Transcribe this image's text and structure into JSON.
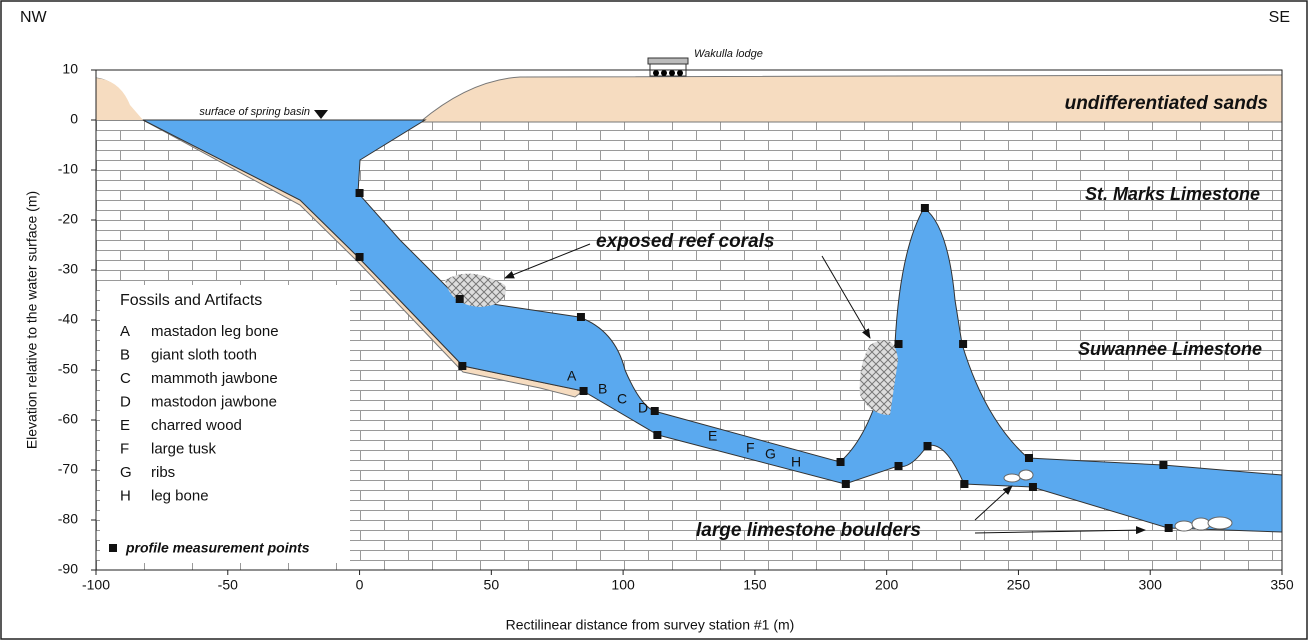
{
  "corner_labels": {
    "left": "NW",
    "right": "SE"
  },
  "y_axis": {
    "label": "Elevation relative to the water surface (m)",
    "lim": [
      -90,
      10
    ],
    "ticks": [
      10,
      0,
      -10,
      -20,
      -30,
      -40,
      -50,
      -60,
      -70,
      -80,
      -90
    ]
  },
  "x_axis": {
    "label": "Rectilinear distance from survey station #1 (m)",
    "lim": [
      -100,
      350
    ],
    "ticks": [
      -100,
      -50,
      0,
      50,
      100,
      150,
      200,
      250,
      300,
      350
    ]
  },
  "annotations": {
    "lodge": "Wakulla lodge",
    "spring_surface": "surface of spring basin",
    "sands": "undifferentiated sands",
    "st_marks": "St. Marks Limestone",
    "suwannee": "Suwannee Limestone",
    "corals": "exposed reef corals",
    "boulders": "large limestone boulders"
  },
  "legend": {
    "title": "Fossils and Artifacts",
    "items": [
      {
        "key": "A",
        "label": "mastadon leg bone"
      },
      {
        "key": "B",
        "label": "giant sloth tooth"
      },
      {
        "key": "C",
        "label": "mammoth jawbone"
      },
      {
        "key": "D",
        "label": "mastodon jawbone"
      },
      {
        "key": "E",
        "label": "charred wood"
      },
      {
        "key": "F",
        "label": "large tusk"
      },
      {
        "key": "G",
        "label": "ribs"
      },
      {
        "key": "H",
        "label": "leg bone"
      }
    ],
    "points_label": "profile measurement points"
  },
  "measurement_points": [
    {
      "x": 0,
      "y": -14.6
    },
    {
      "x": 0,
      "y": -27.4
    },
    {
      "x": 38,
      "y": -35.8
    },
    {
      "x": 84,
      "y": -39.4
    },
    {
      "x": 39,
      "y": -49.2
    },
    {
      "x": 85,
      "y": -54.2
    },
    {
      "x": 112,
      "y": -58.2
    },
    {
      "x": 113,
      "y": -63
    },
    {
      "x": 182.5,
      "y": -68.4
    },
    {
      "x": 184.5,
      "y": -72.8
    },
    {
      "x": 204.5,
      "y": -69.2
    },
    {
      "x": 204.5,
      "y": -44.8
    },
    {
      "x": 214.5,
      "y": -17.6
    },
    {
      "x": 215.5,
      "y": -65.2
    },
    {
      "x": 229,
      "y": -44.8
    },
    {
      "x": 229.5,
      "y": -72.8
    },
    {
      "x": 254,
      "y": -67.6
    },
    {
      "x": 255.5,
      "y": -73.4
    },
    {
      "x": 305,
      "y": -69
    },
    {
      "x": 307,
      "y": -81.6
    }
  ]
}
